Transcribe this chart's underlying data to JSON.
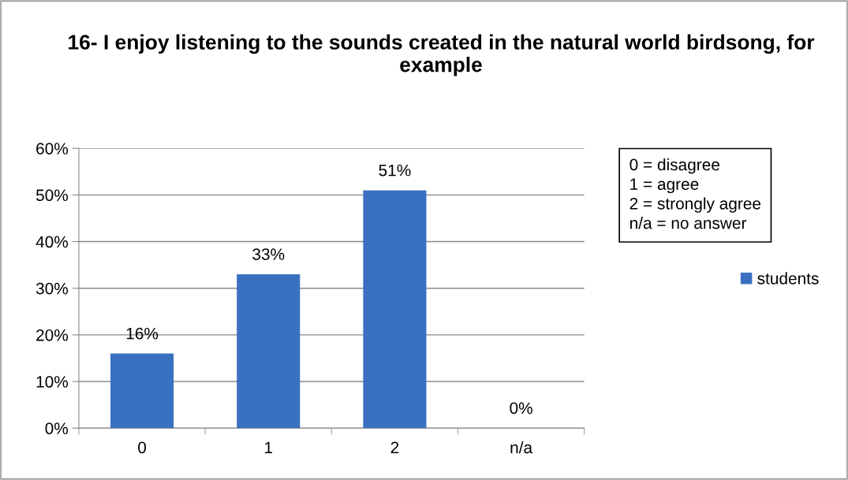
{
  "chart_data": {
    "type": "bar",
    "title": "16- I enjoy listening to the sounds created in the natural world birdsong, for example",
    "categories": [
      "0",
      "1",
      "2",
      "n/a"
    ],
    "series": [
      {
        "name": "students",
        "color": "#3a70c0",
        "values": [
          16,
          33,
          51,
          0
        ],
        "value_labels": [
          "16%",
          "33%",
          "51%",
          "0%"
        ]
      }
    ],
    "ylim": [
      0,
      60
    ],
    "yticks": [
      {
        "value": 0,
        "label": "0%"
      },
      {
        "value": 10,
        "label": "10%"
      },
      {
        "value": 20,
        "label": "20%"
      },
      {
        "value": 30,
        "label": "30%"
      },
      {
        "value": 40,
        "label": "40%"
      },
      {
        "value": 50,
        "label": "50%"
      },
      {
        "value": 60,
        "label": "60%"
      }
    ],
    "grid": "y",
    "legend": "right",
    "annotations": [
      "0 = disagree",
      "1 = agree",
      "2 = strongly agree",
      "n/a = no answer"
    ]
  }
}
